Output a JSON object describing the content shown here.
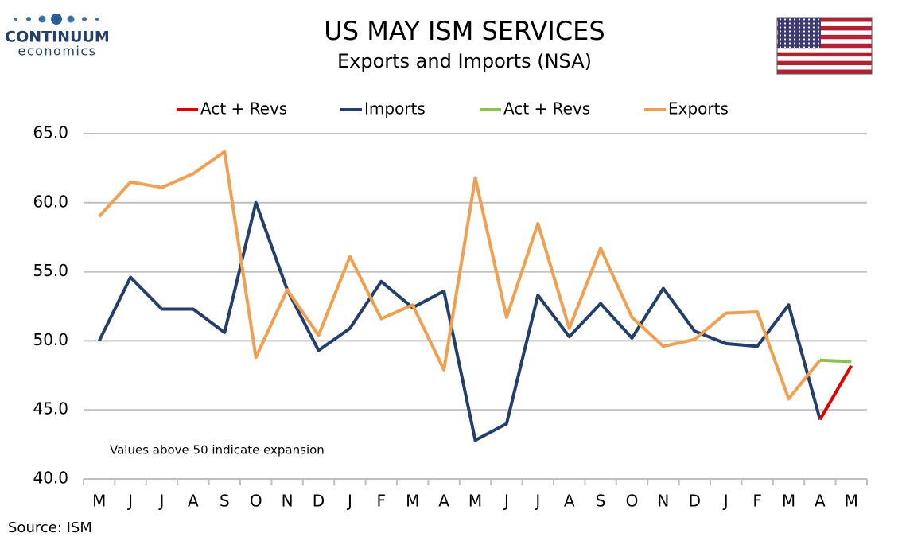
{
  "logo": {
    "name": "CONTINUUM",
    "tagline": "economics"
  },
  "chart_data": {
    "type": "line",
    "title": "US MAY ISM SERVICES",
    "subtitle": "Exports and Imports (NSA)",
    "annotation": "Values above 50 indicate expansion",
    "source": "Source: ISM",
    "categories": [
      "M",
      "J",
      "J",
      "A",
      "S",
      "O",
      "N",
      "D",
      "J",
      "F",
      "M",
      "A",
      "M",
      "J",
      "J",
      "A",
      "S",
      "O",
      "N",
      "D",
      "J",
      "F",
      "M",
      "A",
      "M"
    ],
    "ylim": [
      40,
      65
    ],
    "yticks": [
      {
        "value": 40,
        "label": "40.0"
      },
      {
        "value": 45,
        "label": "45.0"
      },
      {
        "value": 50,
        "label": "50.0"
      },
      {
        "value": 55,
        "label": "55.0"
      },
      {
        "value": 60,
        "label": "60.0"
      },
      {
        "value": 65,
        "label": "65.0"
      }
    ],
    "grid": true,
    "series": [
      {
        "name": "Act + Revs",
        "color": "#e00000",
        "values": [
          null,
          null,
          null,
          null,
          null,
          null,
          null,
          null,
          null,
          null,
          null,
          null,
          null,
          null,
          null,
          null,
          null,
          null,
          null,
          null,
          null,
          null,
          null,
          44.3,
          48.2
        ]
      },
      {
        "name": "Imports",
        "color": "#243f6b",
        "values": [
          50.0,
          54.6,
          52.3,
          52.3,
          50.6,
          60.0,
          53.7,
          49.3,
          50.9,
          54.3,
          52.4,
          53.6,
          42.8,
          44.0,
          53.3,
          50.3,
          52.7,
          50.2,
          53.8,
          50.7,
          49.8,
          49.6,
          52.6,
          44.3,
          null
        ]
      },
      {
        "name": "Act + Revs",
        "color": "#8fbf50",
        "values": [
          null,
          null,
          null,
          null,
          null,
          null,
          null,
          null,
          null,
          null,
          null,
          null,
          null,
          null,
          null,
          null,
          null,
          null,
          null,
          null,
          null,
          null,
          null,
          48.6,
          48.5
        ]
      },
      {
        "name": "Exports",
        "color": "#f0a050",
        "values": [
          59.0,
          61.5,
          61.1,
          62.1,
          63.7,
          48.8,
          53.7,
          50.4,
          56.1,
          51.6,
          52.6,
          47.9,
          61.8,
          51.7,
          58.5,
          50.9,
          56.7,
          51.7,
          49.6,
          50.1,
          52.0,
          52.1,
          45.8,
          48.6,
          null
        ]
      }
    ]
  }
}
